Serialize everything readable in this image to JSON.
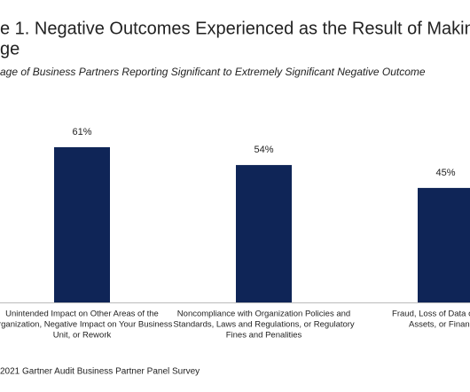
{
  "chart_data": {
    "type": "bar",
    "title": [
      "e 1. Negative Outcomes Experienced as the Result of Makin",
      "ge"
    ],
    "subtitle": "age of Business Partners Reporting Significant to Extremely Significant Negative Outcome",
    "categories": [
      [
        "Unintended Impact on Other Areas of the",
        "Organization, Negative Impact on Your Business",
        "Unit, or Rework"
      ],
      [
        "Noncompliance with Organization Policies and",
        "Standards, Laws and Regulations, or Regulatory",
        "Fines and Penalities"
      ],
      [
        "Fraud, Loss of Data or Other",
        "Assets, or Financial"
      ]
    ],
    "values": [
      61,
      54,
      45
    ],
    "value_labels": [
      "61%",
      "54%",
      "45%"
    ],
    "color": "#0f2557",
    "source": "2021 Gartner Audit Business Partner Panel Survey"
  }
}
